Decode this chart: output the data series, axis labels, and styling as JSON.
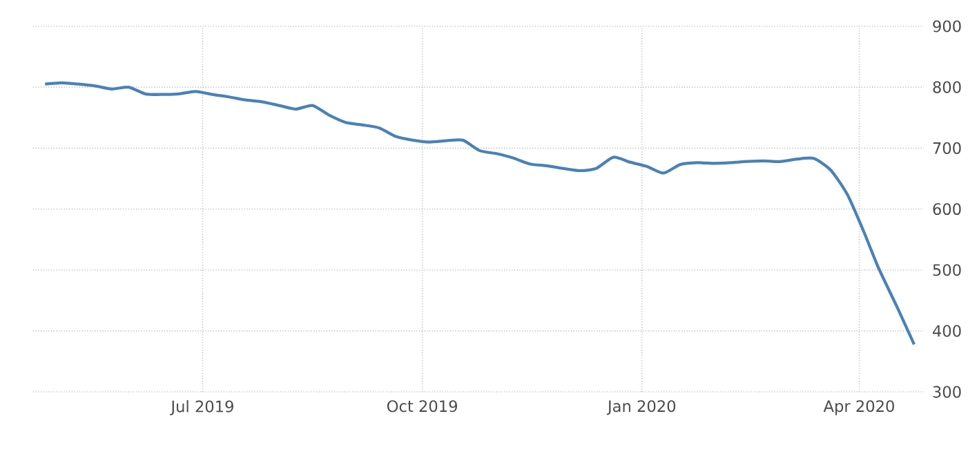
{
  "chart_data": {
    "type": "line",
    "x": [
      "2019-04-26",
      "2019-05-03",
      "2019-05-10",
      "2019-05-17",
      "2019-05-24",
      "2019-05-31",
      "2019-06-07",
      "2019-06-14",
      "2019-06-21",
      "2019-06-28",
      "2019-07-05",
      "2019-07-12",
      "2019-07-19",
      "2019-07-26",
      "2019-08-02",
      "2019-08-09",
      "2019-08-16",
      "2019-08-23",
      "2019-08-30",
      "2019-09-06",
      "2019-09-13",
      "2019-09-20",
      "2019-09-27",
      "2019-10-04",
      "2019-10-11",
      "2019-10-18",
      "2019-10-25",
      "2019-11-01",
      "2019-11-08",
      "2019-11-15",
      "2019-11-22",
      "2019-11-27",
      "2019-12-06",
      "2019-12-13",
      "2019-12-20",
      "2019-12-27",
      "2020-01-03",
      "2020-01-10",
      "2020-01-17",
      "2020-01-24",
      "2020-01-31",
      "2020-02-07",
      "2020-02-14",
      "2020-02-21",
      "2020-02-28",
      "2020-03-06",
      "2020-03-13",
      "2020-03-20",
      "2020-03-27",
      "2020-04-03",
      "2020-04-09",
      "2020-04-17",
      "2020-04-24"
    ],
    "series": [
      {
        "color": "#4a81b8",
        "values": [
          805,
          807,
          805,
          802,
          797,
          800,
          789,
          788,
          789,
          793,
          788,
          784,
          779,
          776,
          770,
          764,
          770,
          754,
          742,
          738,
          733,
          719,
          713,
          710,
          712,
          713,
          696,
          691,
          684,
          674,
          671,
          668,
          663,
          667,
          685,
          677,
          670,
          659,
          673,
          676,
          675,
          676,
          678,
          679,
          678,
          682,
          683,
          664,
          624,
          562,
          504,
          438,
          378
        ]
      }
    ],
    "xlim": [
      "2019-04-21",
      "2020-04-28"
    ],
    "xticks": [
      {
        "value": "2019-07-01",
        "label": "Jul 2019"
      },
      {
        "value": "2019-10-01",
        "label": "Oct 2019"
      },
      {
        "value": "2020-01-01",
        "label": "Jan 2020"
      },
      {
        "value": "2020-04-01",
        "label": "Apr 2020"
      }
    ],
    "ylim": [
      300,
      900
    ],
    "yticks": [
      300,
      400,
      500,
      600,
      700,
      800,
      900
    ],
    "grid": true,
    "line_style": "solid"
  }
}
